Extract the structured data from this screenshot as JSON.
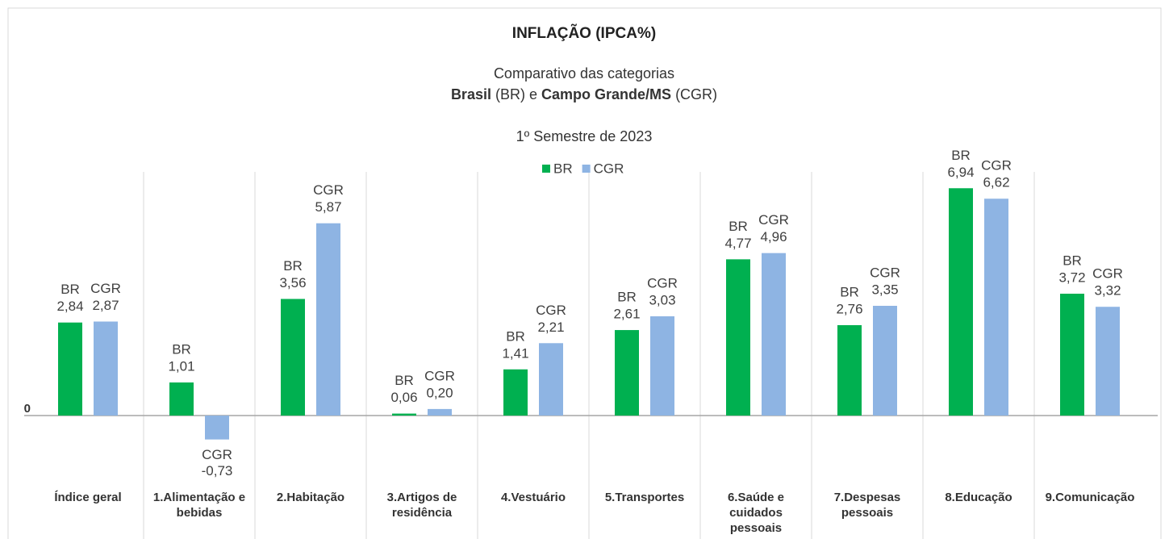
{
  "chart_data": {
    "type": "bar",
    "title": "INFLAÇÃO (IPCA%)",
    "subtitle": [
      "Comparativo das categorias",
      [
        "Brasil",
        "(BR) e",
        "Campo Grande/MS",
        "(CGR)"
      ],
      "1º Semestre de 2023"
    ],
    "categories": [
      [
        "Índice geral"
      ],
      [
        "1.Alimentação e",
        "bebidas"
      ],
      [
        "2.Habitação"
      ],
      [
        "3.Artigos de",
        "residência"
      ],
      [
        "4.Vestuário"
      ],
      [
        "5.Transportes"
      ],
      [
        "6.Saúde e",
        "cuidados",
        "pessoais"
      ],
      [
        "7.Despesas",
        "pessoais"
      ],
      [
        "8.Educação"
      ],
      [
        "9.Comunicação"
      ]
    ],
    "series": [
      {
        "name": "BR",
        "color": "#00b050",
        "values": [
          2.84,
          1.01,
          3.56,
          0.06,
          1.41,
          2.61,
          4.77,
          2.76,
          6.94,
          3.72
        ],
        "value_labels": [
          "2,84",
          "1,01",
          "3,56",
          "0,06",
          "1,41",
          "2,61",
          "4,77",
          "2,76",
          "6,94",
          "3,72"
        ]
      },
      {
        "name": "CGR",
        "color": "#8eb4e3",
        "values": [
          2.87,
          -0.73,
          5.87,
          0.2,
          2.21,
          3.03,
          4.96,
          3.35,
          6.62,
          3.32
        ],
        "value_labels": [
          "2,87",
          "-0,73",
          "5,87",
          "0,20",
          "2,21",
          "3,03",
          "4,96",
          "3,35",
          "6,62",
          "3,32"
        ]
      }
    ],
    "ylim": [
      -2.5,
      7.4
    ],
    "yticks": [
      0
    ],
    "legend": "top"
  }
}
